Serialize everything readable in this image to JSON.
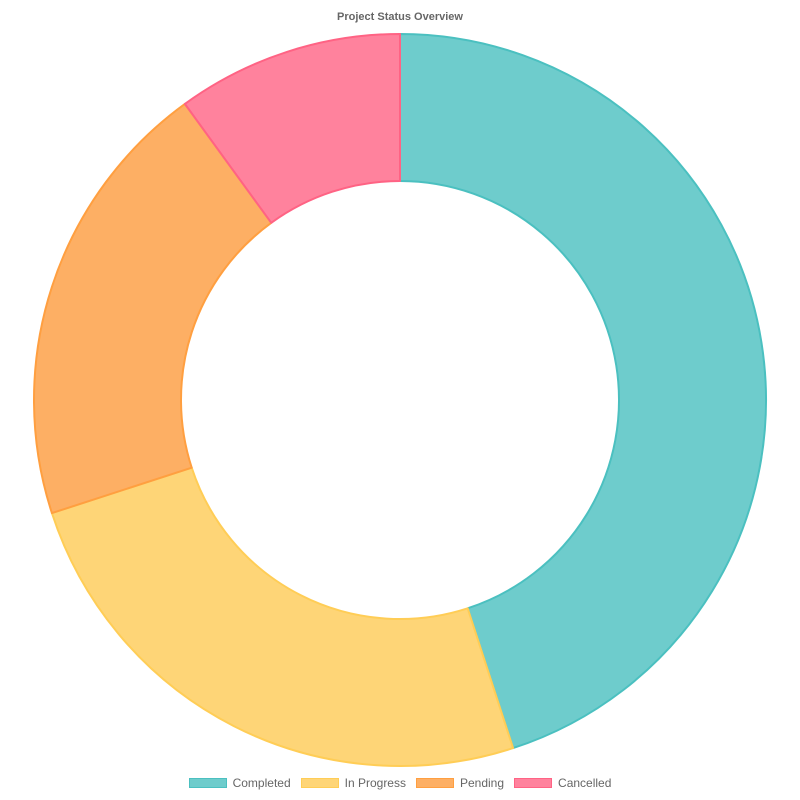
{
  "chart_data": {
    "type": "pie",
    "title": "Project Status Overview",
    "categories": [
      "Completed",
      "In Progress",
      "Pending",
      "Cancelled"
    ],
    "values": [
      45,
      25,
      20,
      10
    ],
    "colors": [
      "#6ECCCC",
      "#FED577",
      "#FDAF64",
      "#FF829D"
    ],
    "border_colors": [
      "#4BC0C0",
      "#FFCD56",
      "#FF9F40",
      "#FF6384"
    ],
    "legend": "bottom"
  }
}
